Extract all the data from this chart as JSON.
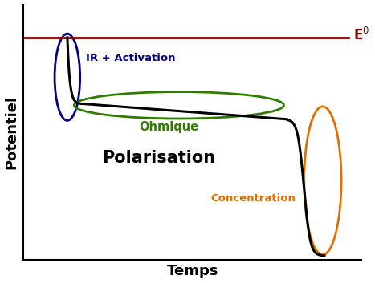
{
  "title": "",
  "xlabel": "Temps",
  "ylabel": "Potentiel",
  "e0_label": "E$^{0}$",
  "e0_color": "#8B0000",
  "curve_color": "#000000",
  "ir_activation_label": "IR + Activation",
  "ir_activation_color": "#00008B",
  "ohmique_label": "Ohmique",
  "ohmique_color": "#2E7D00",
  "polarisation_label": "Polarisation",
  "polarisation_color": "#000000",
  "concentration_label": "Concentration",
  "concentration_color": "#E07000",
  "background_color": "#ffffff",
  "xlim": [
    0,
    10
  ],
  "ylim": [
    0,
    10
  ],
  "e0_y": 8.7,
  "drop_start_x": 1.3,
  "plateau_y": 6.1,
  "plateau_end_x": 7.8,
  "final_drop_end_x": 8.9,
  "final_drop_end_y": 0.15
}
